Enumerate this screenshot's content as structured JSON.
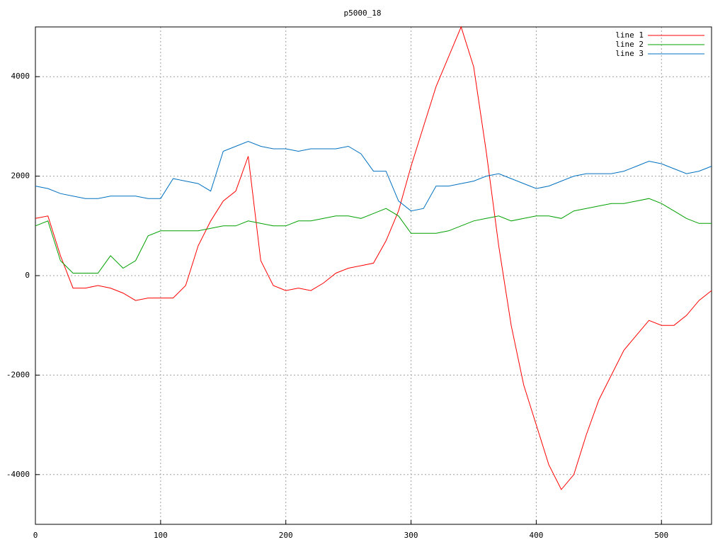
{
  "chart_data": {
    "type": "line",
    "title": "p5000_18",
    "x": [
      0,
      10,
      20,
      30,
      40,
      50,
      60,
      70,
      80,
      90,
      100,
      110,
      120,
      130,
      140,
      150,
      160,
      170,
      180,
      190,
      200,
      210,
      220,
      230,
      240,
      250,
      260,
      270,
      280,
      290,
      300,
      310,
      320,
      330,
      340,
      350,
      360,
      370,
      380,
      390,
      400,
      410,
      420,
      430,
      440,
      450,
      460,
      470,
      480,
      490,
      500,
      510,
      520,
      530,
      540
    ],
    "series": [
      {
        "name": "line 1",
        "color": "#ff0000",
        "values": [
          1150,
          1200,
          400,
          -250,
          -250,
          -200,
          -250,
          -350,
          -500,
          -450,
          -450,
          -450,
          -200,
          600,
          1100,
          1500,
          1700,
          2400,
          300,
          -200,
          -300,
          -250,
          -300,
          -150,
          50,
          150,
          200,
          250,
          700,
          1300,
          2200,
          3000,
          3800,
          4400,
          5000,
          4200,
          2500,
          600,
          -1000,
          -2200,
          -3000,
          -3800,
          -4300,
          -4000,
          -3200,
          -2500,
          -2000,
          -1500,
          -1200,
          -900,
          -1000,
          -1000,
          -800,
          -500,
          -300
        ]
      },
      {
        "name": "line 2",
        "color": "#00a000",
        "values": [
          1000,
          1100,
          300,
          50,
          50,
          50,
          400,
          150,
          300,
          800,
          900,
          900,
          900,
          900,
          950,
          1000,
          1000,
          1100,
          1050,
          1000,
          1000,
          1100,
          1100,
          1150,
          1200,
          1200,
          1150,
          1250,
          1350,
          1200,
          850,
          850,
          850,
          900,
          1000,
          1100,
          1150,
          1200,
          1100,
          1150,
          1200,
          1200,
          1150,
          1300,
          1350,
          1400,
          1450,
          1450,
          1500,
          1550,
          1450,
          1300,
          1150,
          1050,
          1050
        ]
      },
      {
        "name": "line 3",
        "color": "#0070c0",
        "values": [
          1800,
          1750,
          1650,
          1600,
          1550,
          1550,
          1600,
          1600,
          1600,
          1550,
          1550,
          1950,
          1900,
          1850,
          1700,
          2500,
          2600,
          2700,
          2600,
          2550,
          2550,
          2500,
          2550,
          2550,
          2550,
          2600,
          2450,
          2100,
          2100,
          1500,
          1300,
          1350,
          1800,
          1800,
          1850,
          1900,
          2000,
          2050,
          1950,
          1850,
          1750,
          1800,
          1900,
          2000,
          2050,
          2050,
          2050,
          2100,
          2200,
          2300,
          2250,
          2150,
          2050,
          2100,
          2200
        ]
      }
    ],
    "xlim": [
      0,
      540
    ],
    "ylim": [
      -5000,
      5000
    ],
    "xticks": [
      0,
      100,
      200,
      300,
      400,
      500
    ],
    "yticks": [
      -4000,
      -2000,
      0,
      2000,
      4000
    ],
    "grid": true,
    "legend": "top-right"
  }
}
